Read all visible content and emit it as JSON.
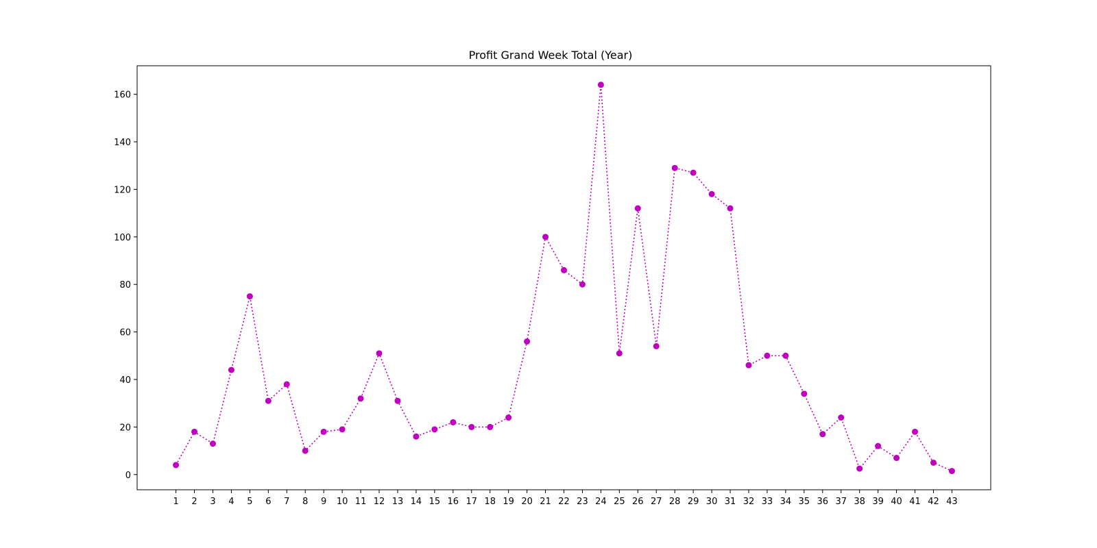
{
  "chart_data": {
    "type": "line",
    "title": "Profit Grand Week Total (Year)",
    "xlabel": "",
    "ylabel": "",
    "x": [
      1,
      2,
      3,
      4,
      5,
      6,
      7,
      8,
      9,
      10,
      11,
      12,
      13,
      14,
      15,
      16,
      17,
      18,
      19,
      20,
      21,
      22,
      23,
      24,
      25,
      26,
      27,
      28,
      29,
      30,
      31,
      32,
      33,
      34,
      35,
      36,
      37,
      38,
      39,
      40,
      41,
      42,
      43
    ],
    "series": [
      {
        "values": [
          4,
          18,
          13,
          44,
          75,
          31,
          38,
          10,
          18,
          19,
          32,
          51,
          31,
          16,
          19,
          22,
          20,
          20,
          24,
          56,
          100,
          86,
          80,
          164,
          51,
          112,
          54,
          129,
          127,
          118,
          112,
          46,
          50,
          50,
          34,
          17,
          24,
          2.5,
          12,
          7,
          18,
          5,
          1.5
        ],
        "color": "#bf00bf",
        "line_style": "dotted",
        "marker": "circle"
      }
    ],
    "xlim": [
      -1.1,
      45.1
    ],
    "ylim": [
      -6.4,
      172
    ],
    "yticks": [
      0,
      20,
      40,
      60,
      80,
      100,
      120,
      140,
      160
    ],
    "grid": false,
    "legend": "none"
  }
}
